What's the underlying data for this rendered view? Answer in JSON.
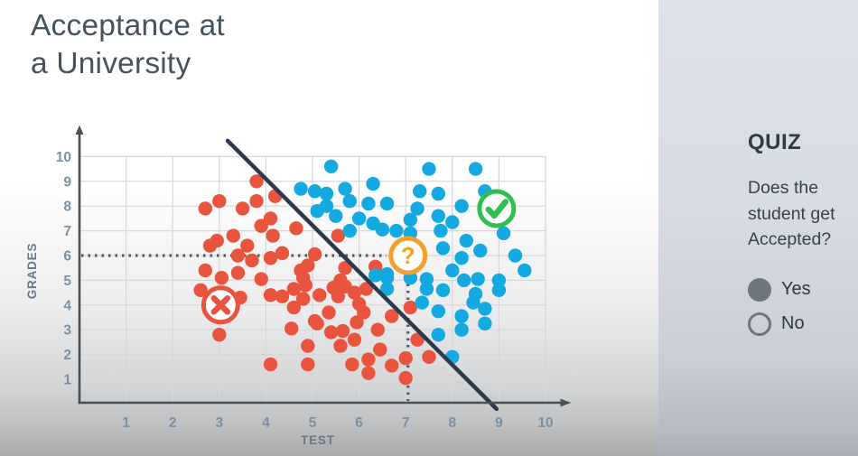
{
  "slide": {
    "title_line1": "Acceptance at",
    "title_line2": "a University"
  },
  "quiz": {
    "heading": "QUIZ",
    "question_lines": [
      "Does the",
      "student get",
      "Accepted?"
    ],
    "options": [
      {
        "label": "Yes",
        "selected": true
      },
      {
        "label": "No",
        "selected": false
      }
    ]
  },
  "chart_data": {
    "type": "scatter",
    "title": "",
    "xlabel": "TEST",
    "ylabel": "GRADES",
    "xlim": [
      0,
      10.6
    ],
    "ylim": [
      0,
      10.9
    ],
    "xticks": [
      1,
      2,
      3,
      4,
      5,
      6,
      7,
      8,
      9,
      10
    ],
    "yticks": [
      1,
      2,
      3,
      4,
      5,
      6,
      7,
      8,
      9,
      10
    ],
    "grid": true,
    "grid_color": "#d5d7d9",
    "axis_color": "#4a4f54",
    "tick_label_color": "#7c90a4",
    "axis_title_color": "#66788a",
    "legend_position": "none",
    "series": [
      {
        "name": "rejected",
        "color": "#e8543e",
        "points": [
          [
            3.8,
            9.0
          ],
          [
            4.2,
            8.4
          ],
          [
            3.0,
            8.2
          ],
          [
            2.7,
            7.9
          ],
          [
            3.5,
            7.9
          ],
          [
            3.8,
            8.2
          ],
          [
            4.1,
            7.5
          ],
          [
            3.9,
            7.2
          ],
          [
            4.65,
            7.1
          ],
          [
            4.15,
            6.8
          ],
          [
            3.3,
            6.8
          ],
          [
            2.8,
            6.4
          ],
          [
            2.95,
            6.6
          ],
          [
            3.6,
            6.4
          ],
          [
            3.4,
            6.0
          ],
          [
            3.7,
            5.8
          ],
          [
            4.1,
            5.9
          ],
          [
            4.35,
            6.1
          ],
          [
            4.9,
            5.6
          ],
          [
            5.55,
            6.8
          ],
          [
            5.05,
            6.05
          ],
          [
            2.7,
            5.4
          ],
          [
            3.05,
            5.1
          ],
          [
            3.4,
            5.3
          ],
          [
            3.9,
            5.05
          ],
          [
            4.75,
            5.4
          ],
          [
            4.8,
            5.1
          ],
          [
            4.6,
            4.65
          ],
          [
            4.85,
            4.8
          ],
          [
            4.1,
            4.4
          ],
          [
            4.35,
            4.35
          ],
          [
            4.6,
            3.9
          ],
          [
            4.8,
            4.25
          ],
          [
            5.05,
            3.35
          ],
          [
            4.55,
            3.05
          ],
          [
            5.1,
            3.25
          ],
          [
            3.0,
            2.8
          ],
          [
            4.9,
            2.35
          ],
          [
            4.1,
            1.6
          ],
          [
            4.9,
            1.6
          ],
          [
            2.6,
            4.6
          ],
          [
            3.45,
            4.3
          ],
          [
            5.7,
            5.5
          ],
          [
            5.6,
            5.0
          ],
          [
            5.45,
            4.7
          ],
          [
            5.7,
            4.75
          ],
          [
            5.15,
            4.4
          ],
          [
            5.55,
            4.35
          ],
          [
            5.9,
            4.5
          ],
          [
            6.15,
            4.65
          ],
          [
            5.35,
            3.7
          ],
          [
            6.0,
            4.05
          ],
          [
            6.1,
            3.7
          ],
          [
            5.95,
            3.3
          ],
          [
            5.4,
            2.9
          ],
          [
            5.65,
            2.95
          ],
          [
            5.6,
            2.35
          ],
          [
            5.9,
            2.6
          ],
          [
            6.4,
            3.0
          ],
          [
            6.45,
            2.2
          ],
          [
            6.2,
            1.8
          ],
          [
            5.85,
            1.6
          ],
          [
            6.7,
            1.55
          ],
          [
            6.2,
            1.25
          ],
          [
            7.0,
            1.85
          ],
          [
            7.0,
            1.05
          ],
          [
            7.25,
            2.6
          ],
          [
            7.5,
            1.9
          ],
          [
            6.7,
            3.55
          ],
          [
            7.1,
            3.9
          ],
          [
            6.35,
            5.55
          ]
        ]
      },
      {
        "name": "accepted",
        "color": "#14a9e1",
        "points": [
          [
            4.75,
            8.7
          ],
          [
            5.05,
            8.6
          ],
          [
            5.1,
            7.8
          ],
          [
            5.4,
            9.6
          ],
          [
            7.5,
            9.5
          ],
          [
            8.5,
            9.5
          ],
          [
            6.3,
            8.9
          ],
          [
            7.3,
            8.6
          ],
          [
            7.7,
            8.5
          ],
          [
            5.3,
            8.5
          ],
          [
            5.7,
            8.7
          ],
          [
            8.7,
            8.6
          ],
          [
            5.8,
            8.2
          ],
          [
            5.3,
            8.0
          ],
          [
            6.2,
            8.1
          ],
          [
            6.6,
            8.1
          ],
          [
            7.25,
            7.9
          ],
          [
            5.5,
            7.6
          ],
          [
            6.0,
            7.5
          ],
          [
            7.1,
            7.45
          ],
          [
            8.2,
            8.0
          ],
          [
            7.7,
            7.6
          ],
          [
            8.0,
            7.35
          ],
          [
            6.3,
            7.3
          ],
          [
            7.1,
            6.9
          ],
          [
            7.75,
            7.0
          ],
          [
            5.8,
            7.0
          ],
          [
            6.5,
            7.05
          ],
          [
            6.8,
            7.0
          ],
          [
            9.1,
            6.9
          ],
          [
            8.3,
            6.6
          ],
          [
            8.6,
            6.2
          ],
          [
            7.8,
            6.3
          ],
          [
            8.2,
            5.9
          ],
          [
            9.35,
            6.0
          ],
          [
            6.35,
            5.2
          ],
          [
            6.6,
            5.1
          ],
          [
            7.1,
            5.1
          ],
          [
            6.6,
            4.65
          ],
          [
            7.45,
            5.05
          ],
          [
            8.0,
            5.4
          ],
          [
            7.45,
            4.65
          ],
          [
            7.8,
            4.6
          ],
          [
            8.25,
            5.0
          ],
          [
            8.55,
            5.05
          ],
          [
            9.0,
            5.0
          ],
          [
            9.0,
            4.6
          ],
          [
            8.5,
            4.45
          ],
          [
            8.45,
            4.1
          ],
          [
            9.55,
            5.4
          ],
          [
            7.35,
            4.1
          ],
          [
            8.7,
            3.85
          ],
          [
            7.7,
            3.75
          ],
          [
            8.2,
            3.55
          ],
          [
            8.2,
            3.0
          ],
          [
            8.7,
            3.25
          ],
          [
            7.7,
            2.8
          ],
          [
            8.0,
            1.9
          ],
          [
            6.6,
            5.25
          ]
        ]
      }
    ],
    "boundary_line": {
      "from": [
        3.18,
        10.64
      ],
      "to": [
        8.95,
        -0.2
      ],
      "color": "#2d3a4c"
    },
    "guides": {
      "horizontal_y": 6,
      "vertical_x": 7.05,
      "color": "#55595e"
    },
    "markers": [
      {
        "type": "cross",
        "x": 3.03,
        "y": 4.0,
        "color": "#e8543e"
      },
      {
        "type": "question",
        "x": 7.05,
        "y": 6.0,
        "color": "#f5a02c"
      },
      {
        "type": "check",
        "x": 8.95,
        "y": 7.9,
        "color": "#2ebe52"
      }
    ]
  }
}
